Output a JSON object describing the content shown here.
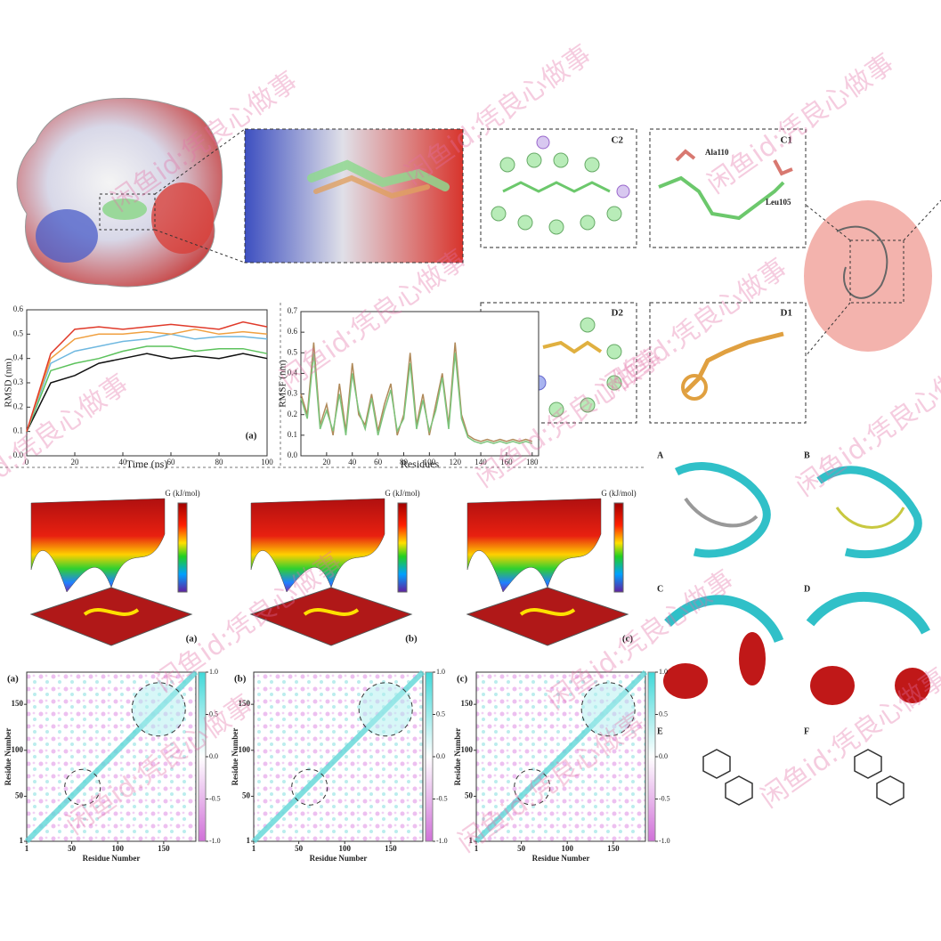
{
  "watermark": "闲鱼id:凭良心做事",
  "chart_data": [
    {
      "type": "line",
      "ylabel": "RMSD (nm)",
      "xlabel": "Time (ns)",
      "panel_label": "(a)",
      "x": [
        0,
        10,
        20,
        30,
        40,
        50,
        60,
        70,
        80,
        90,
        100
      ],
      "series": [
        {
          "color": "#111111",
          "values": [
            0.1,
            0.3,
            0.33,
            0.38,
            0.4,
            0.42,
            0.4,
            0.41,
            0.4,
            0.42,
            0.4
          ]
        },
        {
          "color": "#5cc25c",
          "values": [
            0.1,
            0.35,
            0.38,
            0.4,
            0.43,
            0.45,
            0.45,
            0.43,
            0.44,
            0.44,
            0.42
          ]
        },
        {
          "color": "#6fb8e0",
          "values": [
            0.1,
            0.38,
            0.43,
            0.45,
            0.47,
            0.48,
            0.5,
            0.48,
            0.49,
            0.49,
            0.48
          ]
        },
        {
          "color": "#f0a040",
          "values": [
            0.1,
            0.4,
            0.48,
            0.5,
            0.5,
            0.51,
            0.5,
            0.52,
            0.5,
            0.51,
            0.5
          ]
        },
        {
          "color": "#e03a2a",
          "values": [
            0.1,
            0.42,
            0.52,
            0.53,
            0.52,
            0.53,
            0.54,
            0.53,
            0.52,
            0.55,
            0.53
          ]
        }
      ],
      "xlim": [
        0,
        100
      ],
      "ylim": [
        0,
        0.6
      ],
      "xticks": [
        0,
        20,
        40,
        60,
        80,
        100
      ],
      "yticks": [
        {
          "value": 0,
          "label": "0.0"
        },
        0.1,
        0.2,
        0.3,
        0.4,
        0.5,
        0.6
      ]
    },
    {
      "type": "line",
      "ylabel": "RMSF (nm)",
      "xlabel": "Residues",
      "x": [
        0,
        5,
        10,
        15,
        20,
        25,
        30,
        35,
        40,
        45,
        50,
        55,
        60,
        65,
        70,
        75,
        80,
        85,
        90,
        95,
        100,
        105,
        110,
        115,
        120,
        125,
        130,
        135,
        140,
        145,
        150,
        155,
        160,
        165,
        170,
        175,
        180
      ],
      "series": [
        {
          "color": "#b08a5a",
          "values": [
            0.3,
            0.2,
            0.55,
            0.15,
            0.25,
            0.1,
            0.35,
            0.12,
            0.45,
            0.2,
            0.15,
            0.3,
            0.12,
            0.25,
            0.35,
            0.1,
            0.2,
            0.5,
            0.15,
            0.3,
            0.1,
            0.25,
            0.4,
            0.15,
            0.55,
            0.2,
            0.1,
            0.08,
            0.07,
            0.08,
            0.07,
            0.08,
            0.07,
            0.08,
            0.07,
            0.08,
            0.07
          ]
        },
        {
          "color": "#7cc47c",
          "values": [
            0.28,
            0.18,
            0.5,
            0.13,
            0.22,
            0.12,
            0.3,
            0.1,
            0.4,
            0.22,
            0.13,
            0.28,
            0.1,
            0.22,
            0.32,
            0.12,
            0.18,
            0.45,
            0.13,
            0.27,
            0.12,
            0.22,
            0.38,
            0.13,
            0.5,
            0.18,
            0.09,
            0.07,
            0.06,
            0.07,
            0.06,
            0.07,
            0.06,
            0.07,
            0.06,
            0.07,
            0.06
          ]
        }
      ],
      "xlim": [
        0,
        185
      ],
      "ylim": [
        0,
        0.7
      ],
      "xticks": [
        20,
        40,
        60,
        80,
        100,
        120,
        140,
        160,
        180
      ],
      "yticks": [
        {
          "value": 0,
          "label": "0.0"
        },
        0.1,
        0.2,
        0.3,
        0.4,
        0.5,
        0.6,
        0.7
      ]
    }
  ],
  "docking": {
    "C2": "C2",
    "C1": "C1",
    "D2": "D2",
    "D1": "D1",
    "residues": [
      "Ala110",
      "Leu105"
    ]
  },
  "fel": {
    "colorbar_title": "G (kJ/mol)",
    "panels": [
      "(a)",
      "(b)",
      "(c)"
    ]
  },
  "dccm": {
    "panels": [
      "(a)",
      "(b)",
      "(c)"
    ],
    "xlabel": "Residue Number",
    "ylabel": "Residue Number",
    "xlim": [
      1,
      185
    ],
    "ylim": [
      1,
      185
    ],
    "xticks": [
      1,
      50,
      100,
      150
    ],
    "yticks": [
      1,
      50,
      100,
      150
    ],
    "colorbar_ticks": [
      {
        "value": 1,
        "label": "1.0"
      },
      0.5,
      {
        "value": 0,
        "label": "0.0"
      },
      -0.5,
      {
        "value": -1,
        "label": "-1.0"
      }
    ]
  },
  "complexes": {
    "panels": [
      "A",
      "B",
      "C",
      "D",
      "E",
      "F"
    ]
  }
}
